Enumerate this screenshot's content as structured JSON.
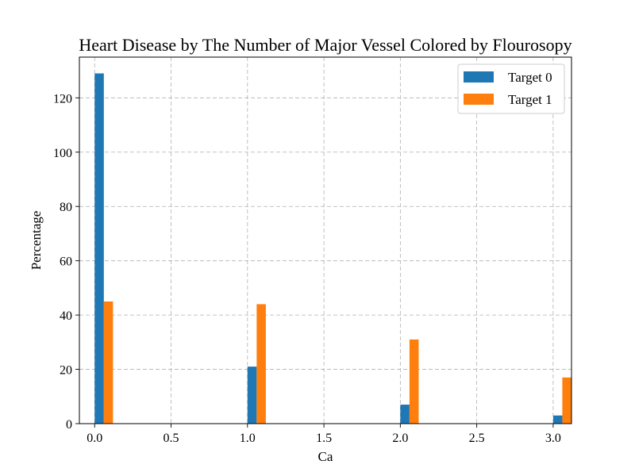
{
  "chart_data": {
    "type": "bar",
    "title": "Heart Disease by The Number of Major Vessel Colored by Flourosopy",
    "xlabel": "Ca",
    "ylabel": "Percentage",
    "x": [
      0,
      1,
      2,
      3
    ],
    "xlim": [
      -0.1,
      3.12
    ],
    "ylim": [
      0,
      135
    ],
    "xticks": [
      "0.0",
      "0.5",
      "1.0",
      "1.5",
      "2.0",
      "2.5",
      "3.0"
    ],
    "yticks": [
      "0",
      "20",
      "40",
      "60",
      "80",
      "100",
      "120"
    ],
    "grid": true,
    "legend_position": "top-right",
    "series": [
      {
        "name": "Target 0",
        "values": [
          129,
          21,
          7,
          3
        ],
        "color": "#1f77b4"
      },
      {
        "name": "Target 1",
        "values": [
          45,
          44,
          31,
          17
        ],
        "color": "#ff7f0e"
      }
    ]
  }
}
